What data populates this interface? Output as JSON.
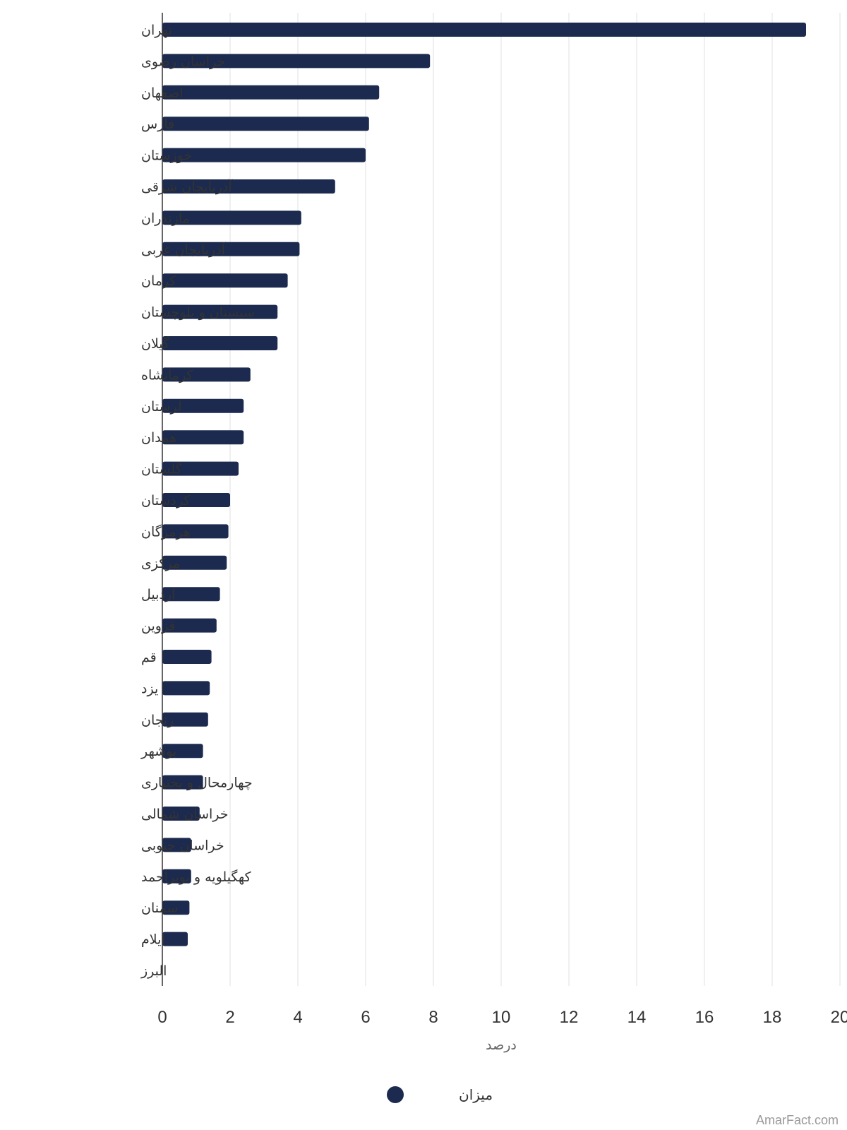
{
  "chart_data": {
    "type": "bar",
    "orientation": "horizontal",
    "categories": [
      "تهران",
      "خراسان رضوی",
      "اصفهان",
      "فارس",
      "خوزستان",
      "آذربایجان شرقی",
      "مازندران",
      "آذربایجان غربی",
      "کرمان",
      "سیستان و بلوچستان",
      "گیلان",
      "کرمانشاه",
      "لرستان",
      "همدان",
      "گلستان",
      "کردستان",
      "هرمزگان",
      "مرکزی",
      "اردبیل",
      "قزوین",
      "قم",
      "یزد",
      "زنجان",
      "بوشهر",
      "چهارمحال و بختیاری",
      "خراسان شمالی",
      "خراسان جنوبی",
      "کهگیلویه و بویراحمد",
      "سمنان",
      "ایلام",
      "البرز"
    ],
    "series": [
      {
        "name": "میزان",
        "color": "#1b2a4e",
        "values": [
          19.0,
          7.9,
          6.4,
          6.1,
          6.0,
          5.1,
          4.1,
          4.05,
          3.7,
          3.4,
          3.4,
          2.6,
          2.4,
          2.4,
          2.25,
          2.0,
          1.95,
          1.9,
          1.7,
          1.6,
          1.45,
          1.4,
          1.35,
          1.2,
          1.2,
          1.1,
          0.85,
          0.85,
          0.8,
          0.75,
          0.0
        ]
      }
    ],
    "xlabel": "درصد",
    "xlim": [
      0,
      20
    ],
    "xticks": [
      0,
      2,
      4,
      6,
      8,
      10,
      12,
      14,
      16,
      18,
      20
    ],
    "grid": true,
    "legend": "bottom-center"
  },
  "credit": "AmarFact.com",
  "colors": {
    "bar": "#1b2a4e",
    "grid": "#e6e6e6",
    "axis": "#333333"
  }
}
